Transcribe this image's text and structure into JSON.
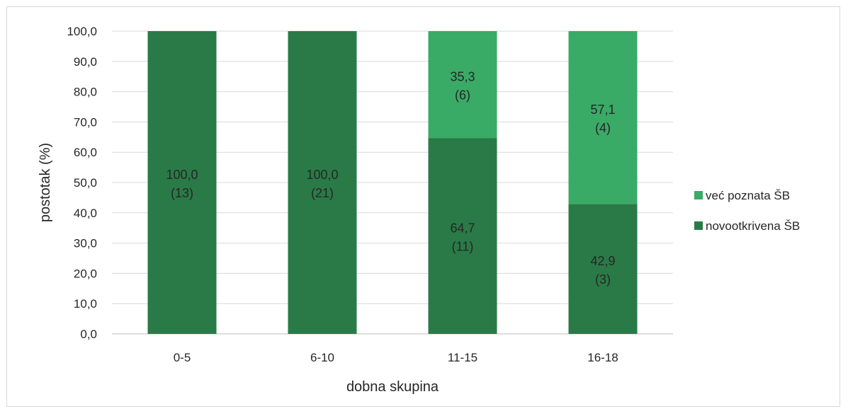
{
  "chart_data": {
    "type": "bar",
    "stacked": true,
    "percent_stacked": true,
    "title": "",
    "xlabel": "dobna skupina",
    "ylabel": "postotak (%)",
    "ylim": [
      0,
      100
    ],
    "yticks": [
      "0,0",
      "10,0",
      "20,0",
      "30,0",
      "40,0",
      "50,0",
      "60,0",
      "70,0",
      "80,0",
      "90,0",
      "100,0"
    ],
    "grid": true,
    "legend_position": "right",
    "categories": [
      "0-5",
      "6-10",
      "11-15",
      "16-18"
    ],
    "series": [
      {
        "name": "novootkrivena ŠB",
        "color": "#2a7a47",
        "values": [
          100.0,
          100.0,
          64.7,
          42.9
        ],
        "labels": [
          "100,0",
          "100,0",
          "64,7",
          "42,9"
        ],
        "counts": [
          "(13)",
          "(21)",
          "(11)",
          "(3)"
        ]
      },
      {
        "name": "već poznata ŠB",
        "color": "#3aaa67",
        "values": [
          0,
          0,
          35.3,
          57.1
        ],
        "labels": [
          "",
          "",
          "35,3",
          "57,1"
        ],
        "counts": [
          "",
          "",
          "(6)",
          "(4)"
        ]
      }
    ],
    "legend_order": [
      1,
      0
    ]
  }
}
